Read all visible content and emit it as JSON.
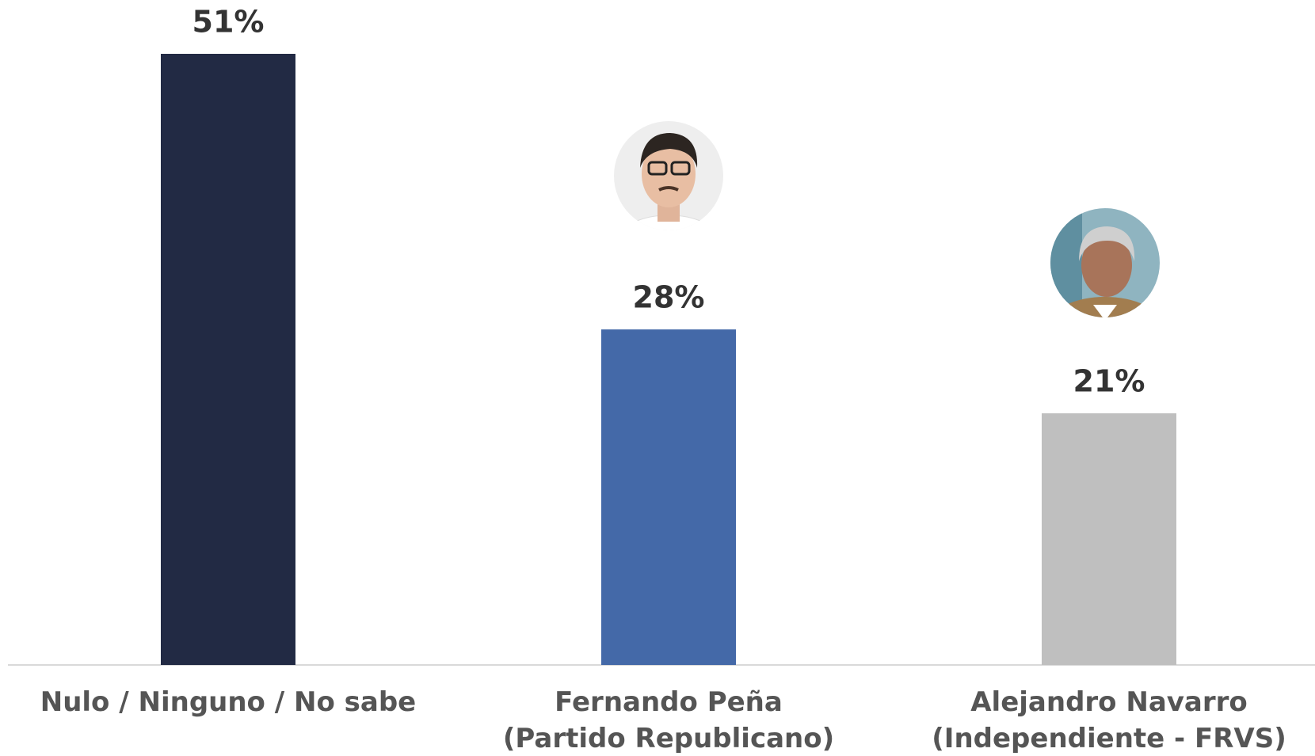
{
  "chart_data": {
    "type": "bar",
    "categories": [
      "Nulo / Ninguno / No sabe",
      "Fernando Peña\n(Partido Republicano)",
      "Alejandro Navarro\n(Independiente - FRVS)"
    ],
    "values": [
      51,
      28,
      21
    ],
    "value_labels": [
      "51%",
      "28%",
      "21%"
    ],
    "colors": [
      "#222a44",
      "#4469a8",
      "#bfbfbf"
    ],
    "ylim": [
      0,
      51
    ]
  }
}
